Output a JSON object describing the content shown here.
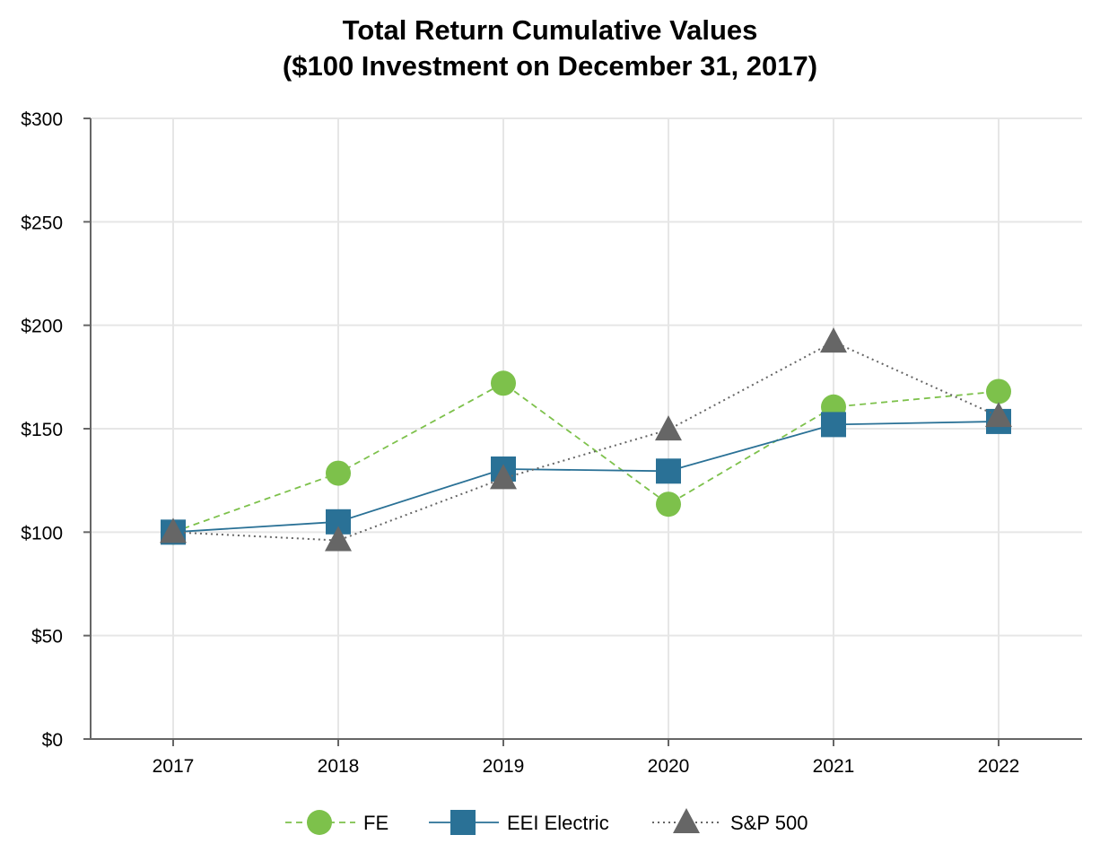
{
  "chart_data": {
    "type": "line",
    "title": "Total Return Cumulative Values",
    "subtitle": "($100 Investment on December 31, 2017)",
    "categories": [
      "2017",
      "2018",
      "2019",
      "2020",
      "2021",
      "2022"
    ],
    "ylim": [
      0,
      300
    ],
    "yticks": [
      0,
      50,
      100,
      150,
      200,
      250,
      300
    ],
    "ytick_labels": [
      "$0",
      "$50",
      "$100",
      "$150",
      "$200",
      "$250",
      "$300"
    ],
    "grid": true,
    "legend_position": "bottom",
    "series": [
      {
        "name": "FE",
        "values": [
          100,
          128.5,
          172,
          113.5,
          160.5,
          168
        ],
        "color": "#7DC14B",
        "marker": "circle",
        "line_style": "dashed"
      },
      {
        "name": "EEI Electric",
        "values": [
          100,
          105,
          130.5,
          129.5,
          152,
          153.5
        ],
        "color": "#2A7196",
        "marker": "square",
        "line_style": "solid"
      },
      {
        "name": "S&P 500",
        "values": [
          100,
          96,
          126,
          149.5,
          192,
          156
        ],
        "color": "#666666",
        "marker": "triangle",
        "line_style": "dotted"
      }
    ]
  }
}
